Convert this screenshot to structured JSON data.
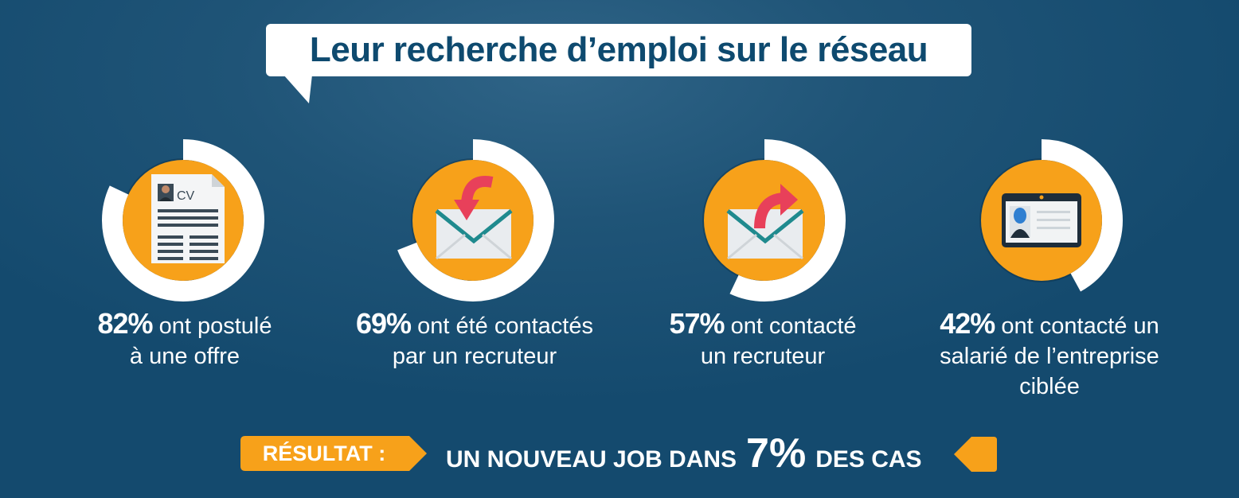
{
  "title": "Leur recherche d’emploi sur le réseau",
  "chart_data": {
    "type": "donut",
    "items": [
      {
        "icon": "cv-document-icon",
        "percent_label": "82%",
        "value": 82,
        "lines": [
          "ont postulé",
          "à une offre"
        ]
      },
      {
        "icon": "envelope-incoming-icon",
        "percent_label": "69%",
        "value": 69,
        "lines": [
          "ont été contactés",
          "par un recruteur"
        ]
      },
      {
        "icon": "envelope-outgoing-icon",
        "percent_label": "57%",
        "value": 57,
        "lines": [
          "ont contacté",
          "un recruteur"
        ]
      },
      {
        "icon": "id-badge-icon",
        "percent_label": "42%",
        "value": 42,
        "lines": [
          "ont contacté un",
          "salarié de l’entreprise",
          "ciblée"
        ]
      }
    ]
  },
  "result": {
    "label": "RÉSULTAT :",
    "text_before": "UN NOUVEAU JOB DANS",
    "highlight": "7%",
    "value": 7,
    "text_after": "DES CAS"
  },
  "colors": {
    "background": "#1a5075",
    "accent": "#f7a11a",
    "ring": "#ffffff",
    "title_text": "#0e4a6f",
    "arrow": "#e8405a",
    "envelope": "#e9ecef",
    "envelope_line": "#1f8a8e"
  }
}
